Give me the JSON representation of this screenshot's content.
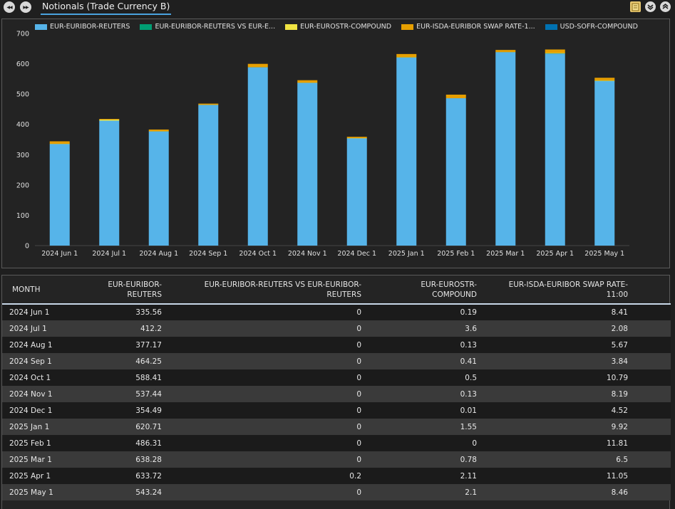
{
  "header": {
    "title": "Notionals (Trade Currency B)",
    "back_glyph": "◀◀",
    "forward_glyph": "▶▶"
  },
  "chart_data": {
    "type": "bar",
    "stacked": true,
    "categories": [
      "2024 Jun 1",
      "2024 Jul 1",
      "2024 Aug 1",
      "2024 Sep 1",
      "2024 Oct 1",
      "2024 Nov 1",
      "2024 Dec 1",
      "2025 Jan 1",
      "2025 Feb 1",
      "2025 Mar 1",
      "2025 Apr 1",
      "2025 May 1"
    ],
    "ylim": [
      0,
      700
    ],
    "yticks": [
      0,
      100,
      200,
      300,
      400,
      500,
      600,
      700
    ],
    "grid": false,
    "legend_position": "top-left",
    "series": [
      {
        "name": "EUR-EURIBOR-REUTERS",
        "legend_label": "EUR-EURIBOR-REUTERS",
        "color": "#56b4e9",
        "values": [
          335.56,
          412.2,
          377.17,
          464.25,
          588.41,
          537.44,
          354.49,
          620.71,
          486.31,
          638.28,
          633.72,
          543.24
        ]
      },
      {
        "name": "EUR-EURIBOR-REUTERS VS EUR-EURIBOR-REUTERS",
        "legend_label": "EUR-EURIBOR-REUTERS VS EUR-E...",
        "color": "#009e73",
        "values": [
          0,
          0,
          0,
          0,
          0,
          0,
          0,
          0,
          0,
          0,
          0.2,
          0
        ]
      },
      {
        "name": "EUR-EUROSTR-COMPOUND",
        "legend_label": "EUR-EUROSTR-COMPOUND",
        "color": "#f0e442",
        "values": [
          0.19,
          3.6,
          0.13,
          0.41,
          0.5,
          0.13,
          0.01,
          1.55,
          0,
          0.78,
          2.11,
          2.1
        ]
      },
      {
        "name": "EUR-ISDA-EURIBOR SWAP RATE-11:00",
        "legend_label": "EUR-ISDA-EURIBOR SWAP RATE-1...",
        "color": "#e69f00",
        "values": [
          8.41,
          2.08,
          5.67,
          3.84,
          10.79,
          8.19,
          4.52,
          9.92,
          11.81,
          6.5,
          11.05,
          8.46
        ]
      },
      {
        "name": "USD-SOFR-COMPOUND",
        "legend_label": "USD-SOFR-COMPOUND",
        "color": "#0072b2",
        "values": [
          0,
          0,
          0,
          0,
          0,
          0,
          0,
          0,
          0,
          0,
          0,
          0
        ]
      }
    ]
  },
  "table": {
    "headers": [
      "MONTH",
      "EUR-EURIBOR-REUTERS",
      "EUR-EURIBOR-REUTERS VS EUR-EURIBOR-REUTERS",
      "EUR-EUROSTR-COMPOUND",
      "EUR-ISDA-EURIBOR SWAP RATE-11:00"
    ],
    "rows": [
      [
        "2024 Jun 1",
        "335.56",
        "0",
        "0.19",
        "8.41"
      ],
      [
        "2024 Jul 1",
        "412.2",
        "0",
        "3.6",
        "2.08"
      ],
      [
        "2024 Aug 1",
        "377.17",
        "0",
        "0.13",
        "5.67"
      ],
      [
        "2024 Sep 1",
        "464.25",
        "0",
        "0.41",
        "3.84"
      ],
      [
        "2024 Oct 1",
        "588.41",
        "0",
        "0.5",
        "10.79"
      ],
      [
        "2024 Nov 1",
        "537.44",
        "0",
        "0.13",
        "8.19"
      ],
      [
        "2024 Dec 1",
        "354.49",
        "0",
        "0.01",
        "4.52"
      ],
      [
        "2025 Jan 1",
        "620.71",
        "0",
        "1.55",
        "9.92"
      ],
      [
        "2025 Feb 1",
        "486.31",
        "0",
        "0",
        "11.81"
      ],
      [
        "2025 Mar 1",
        "638.28",
        "0",
        "0.78",
        "6.5"
      ],
      [
        "2025 Apr 1",
        "633.72",
        "0.2",
        "2.11",
        "11.05"
      ],
      [
        "2025 May 1",
        "543.24",
        "0",
        "2.1",
        "8.46"
      ]
    ]
  }
}
